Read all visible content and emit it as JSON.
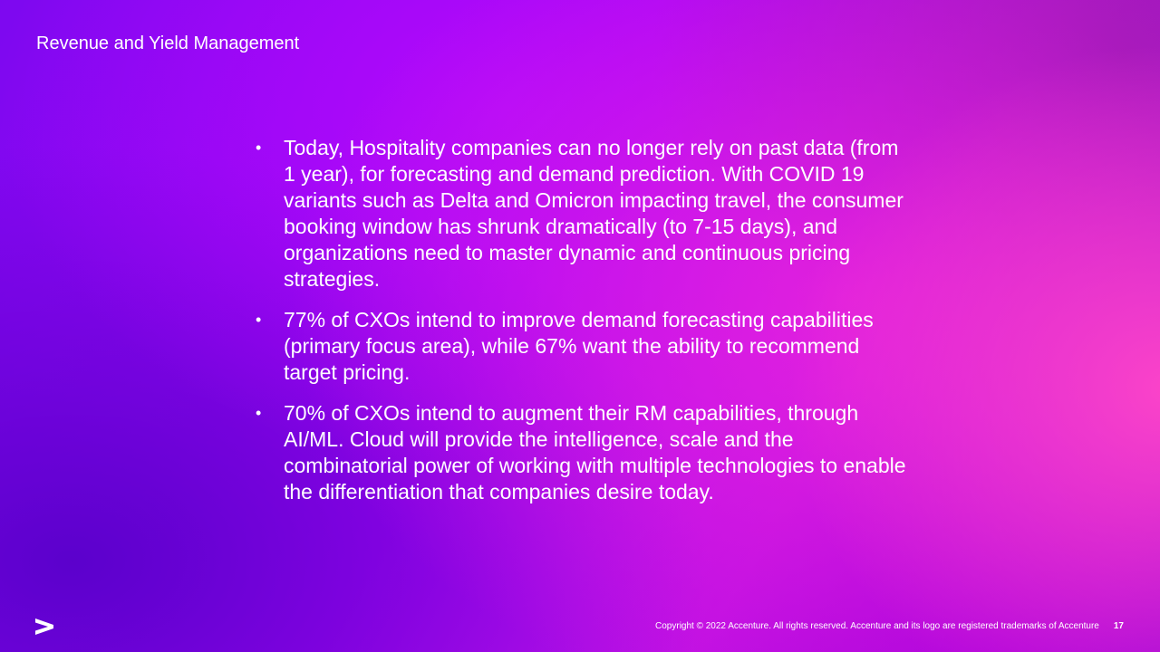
{
  "slide": {
    "title": "Revenue and Yield Management",
    "bullets": [
      "Today, Hospitality companies can no longer rely on past data (from 1 year), for forecasting and demand prediction. With COVID 19 variants such as Delta and Omicron impacting travel, the consumer booking window has shrunk dramatically (to 7-15 days), and organizations need to master dynamic and continuous pricing strategies.",
      "77% of CXOs intend to improve demand forecasting capabilities (primary focus area), while 67% want the ability to recommend target pricing.",
      "70% of CXOs intend to augment their RM capabilities, through AI/ML. Cloud will provide the intelligence, scale and the combinatorial power of working with multiple technologies to enable the differentiation that companies desire today."
    ],
    "bullet_marker": "•"
  },
  "footer": {
    "logo_icon": "accenture-greater-than-logo",
    "copyright": "Copyright © 2022 Accenture. All rights reserved. Accenture and its logo are registered trademarks of Accenture",
    "page_number": "17"
  }
}
